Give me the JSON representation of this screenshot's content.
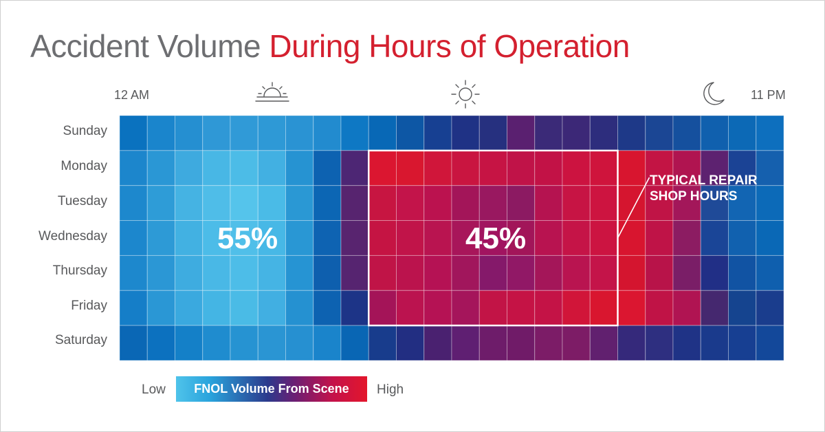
{
  "title": {
    "part1": "Accident Volume ",
    "part2": "During Hours of Operation"
  },
  "hour_labels": {
    "start": "12 AM",
    "end": "11 PM"
  },
  "icons": [
    "sunrise-icon",
    "sun-icon",
    "moon-icon"
  ],
  "colors": {
    "title_gray": "#6d6e71",
    "title_red": "#d4202f",
    "low": "#4fc3ea",
    "high": "#e3162c"
  },
  "annotations": {
    "left_pct": "55%",
    "right_pct": "45%",
    "callout_line1": "TYPICAL REPAIR",
    "callout_line2": "SHOP HOURS"
  },
  "legend": {
    "low": "Low",
    "label": "FNOL Volume From Scene",
    "high": "High"
  },
  "chart_data": {
    "type": "heatmap",
    "title": "Accident Volume During Hours of Operation",
    "x_label_start": "12 AM",
    "x_label_end": "11 PM",
    "rows": [
      "Sunday",
      "Monday",
      "Tuesday",
      "Wednesday",
      "Thursday",
      "Friday",
      "Saturday"
    ],
    "columns": 24,
    "scale": "Low to High (FNOL Volume From Scene)",
    "highlight": {
      "label": "TYPICAL REPAIR SHOP HOURS",
      "rows": [
        "Monday",
        "Friday"
      ]
    },
    "values": [
      [
        "#0a72bf",
        "#1a85cc",
        "#258fd1",
        "#2f98d6",
        "#309ad7",
        "#2e99d6",
        "#2a93d3",
        "#228bcf",
        "#0e78c4",
        "#0868b6",
        "#0d57a5",
        "#174092",
        "#1f3285",
        "#26307f",
        "#5a2070",
        "#3b2a78",
        "#3c2877",
        "#2d2d7d",
        "#1e3988",
        "#1b4694",
        "#15509e",
        "#1060ae",
        "#0c69b6",
        "#0d6fbe"
      ],
      [
        "#1c86cc",
        "#2a97d5",
        "#3eaadf",
        "#48b7e5",
        "#4cbce7",
        "#42b0e2",
        "#2693d2",
        "#0d62b1",
        "#4d2674",
        "#db1630",
        "#d9172f",
        "#d0163a",
        "#c91540",
        "#c61444",
        "#c01348",
        "#c21246",
        "#cc1340",
        "#cf143c",
        "#d8152f",
        "#c31444",
        "#b01450",
        "#5d2270",
        "#1b4395",
        "#1560ae"
      ],
      [
        "#1d88cd",
        "#2e9cd7",
        "#45b3e3",
        "#4fbde8",
        "#55c4eb",
        "#4abbe7",
        "#2a98d4",
        "#0c66b4",
        "#57246f",
        "#c71541",
        "#c3144a",
        "#bb124f",
        "#a31559",
        "#991860",
        "#8c1a62",
        "#b51350",
        "#c71444",
        "#cd1440",
        "#d5152f",
        "#c01446",
        "#a3175a",
        "#1f4a98",
        "#1265b3",
        "#0c6ab8"
      ],
      [
        "#1c87cd",
        "#2d9ad6",
        "#42b1e2",
        "#4cbce8",
        "#50bfe9",
        "#47b8e6",
        "#2997d4",
        "#0e63b2",
        "#58246f",
        "#c51443",
        "#c11449",
        "#b91450",
        "#a8165a",
        "#a11460",
        "#a21559",
        "#b81350",
        "#c51447",
        "#cc1441",
        "#d8152f",
        "#bf1347",
        "#8c1c62",
        "#1a4597",
        "#1161af",
        "#0a68b6"
      ],
      [
        "#1d88cd",
        "#2b97d5",
        "#3eace0",
        "#49b8e6",
        "#4dbde8",
        "#45b4e4",
        "#2694d3",
        "#0e5fae",
        "#562470",
        "#c01447",
        "#bb134d",
        "#b51254",
        "#a1165c",
        "#85196a",
        "#911866",
        "#a41659",
        "#b91450",
        "#c41449",
        "#d4152f",
        "#b81349",
        "#7a1e67",
        "#212f86",
        "#1153a3",
        "#0f5fae"
      ],
      [
        "#157ec8",
        "#2a97d5",
        "#3aa9df",
        "#44b5e4",
        "#4abbe6",
        "#41afe2",
        "#2591d1",
        "#0d62b1",
        "#1d3487",
        "#a41458",
        "#bb134f",
        "#b51254",
        "#a5155b",
        "#c21446",
        "#c51345",
        "#c41346",
        "#d11539",
        "#d9162f",
        "#db1630",
        "#c01346",
        "#b01452",
        "#45286f",
        "#15448f",
        "#1a3d8d"
      ],
      [
        "#0a67b5",
        "#0c71bf",
        "#1480c8",
        "#1f8ccf",
        "#2693d2",
        "#2a95d3",
        "#2690d1",
        "#1a84cb",
        "#0966b4",
        "#183c8c",
        "#222e82",
        "#4a2170",
        "#5f1f72",
        "#6e1c6a",
        "#701b68",
        "#7c1c67",
        "#7d1c66",
        "#61206f",
        "#35297b",
        "#2e2f80",
        "#1f3386",
        "#1a3a8c",
        "#173f92",
        "#13489a"
      ]
    ]
  }
}
